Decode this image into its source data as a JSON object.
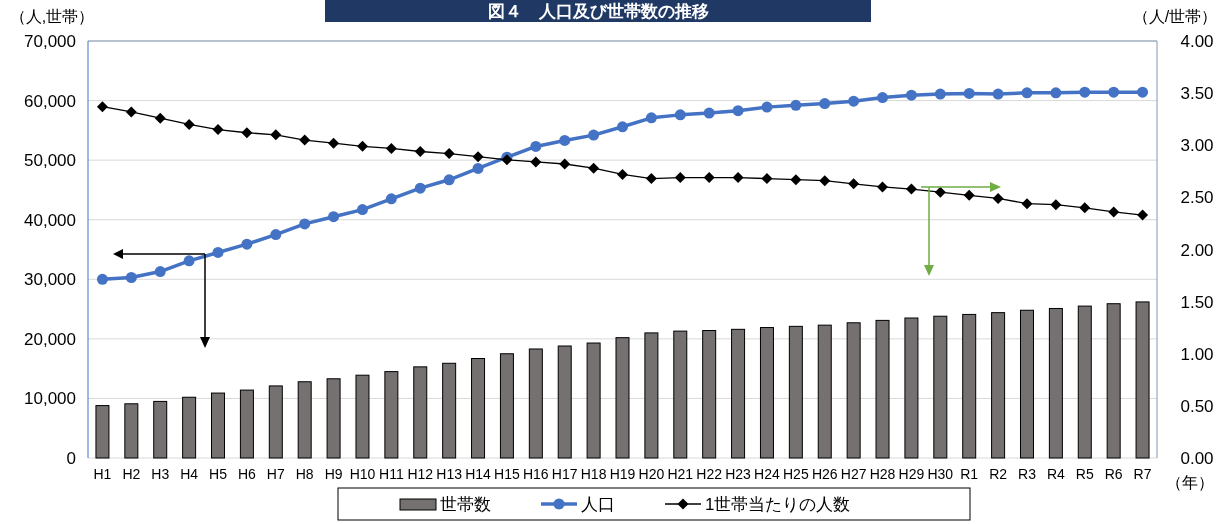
{
  "chart_data": {
    "type": "bar",
    "title": "図４　人口及び世帯数の推移",
    "ylabel": "（人,世帯）",
    "y2label": "（人/世帯）",
    "xlabel": "（年）",
    "categories": [
      "H1",
      "H2",
      "H3",
      "H4",
      "H5",
      "H6",
      "H7",
      "H8",
      "H9",
      "H10",
      "H11",
      "H12",
      "H13",
      "H14",
      "H15",
      "H16",
      "H17",
      "H18",
      "H19",
      "H20",
      "H21",
      "H22",
      "H23",
      "H24",
      "H25",
      "H26",
      "H27",
      "H28",
      "H29",
      "H30",
      "R1",
      "R2",
      "R3",
      "R4",
      "R5",
      "R6",
      "R7"
    ],
    "series": [
      {
        "name": "世帯数",
        "color": "#767171",
        "values": [
          8800,
          9100,
          9500,
          10200,
          10900,
          11400,
          12100,
          12800,
          13300,
          13900,
          14500,
          15300,
          15900,
          16700,
          17500,
          18300,
          18800,
          19300,
          20200,
          21000,
          21300,
          21400,
          21600,
          21900,
          22100,
          22300,
          22700,
          23100,
          23500,
          23800,
          24100,
          24400,
          24800,
          25100,
          25500,
          25900,
          26200
        ]
      },
      {
        "name": "人口",
        "type": "line",
        "color": "#4472c4",
        "marker": "circle",
        "values": [
          30000,
          30300,
          31300,
          33100,
          34500,
          35900,
          37500,
          39300,
          40500,
          41700,
          43500,
          45300,
          46700,
          48600,
          50500,
          52300,
          53300,
          54200,
          55600,
          57100,
          57600,
          57900,
          58300,
          58900,
          59200,
          59500,
          59900,
          60500,
          60900,
          61100,
          61200,
          61100,
          61300,
          61300,
          61400,
          61400,
          61400
        ]
      },
      {
        "name": "1世帯当たりの人数",
        "type": "line",
        "color": "#000000",
        "marker": "diamond",
        "axis": "y2",
        "values": [
          3.37,
          3.32,
          3.26,
          3.2,
          3.15,
          3.12,
          3.1,
          3.05,
          3.02,
          2.99,
          2.97,
          2.94,
          2.92,
          2.89,
          2.86,
          2.84,
          2.82,
          2.78,
          2.72,
          2.68,
          2.69,
          2.69,
          2.69,
          2.68,
          2.67,
          2.66,
          2.63,
          2.6,
          2.58,
          2.55,
          2.52,
          2.49,
          2.44,
          2.43,
          2.4,
          2.36,
          2.33
        ]
      }
    ],
    "ylim": [
      0,
      70000
    ],
    "yticks": [
      {
        "value": 0,
        "label": "0"
      },
      {
        "value": 10000,
        "label": "10,000"
      },
      {
        "value": 20000,
        "label": "20,000"
      },
      {
        "value": 30000,
        "label": "30,000"
      },
      {
        "value": 40000,
        "label": "40,000"
      },
      {
        "value": 50000,
        "label": "50,000"
      },
      {
        "value": 60000,
        "label": "60,000"
      },
      {
        "value": 70000,
        "label": "70,000"
      }
    ],
    "y2lim": [
      0,
      4
    ],
    "y2ticks": [
      {
        "value": 0,
        "label": "0.00"
      },
      {
        "value": 0.5,
        "label": "0.50"
      },
      {
        "value": 1,
        "label": "1.00"
      },
      {
        "value": 1.5,
        "label": "1.50"
      },
      {
        "value": 2,
        "label": "2.00"
      },
      {
        "value": 2.5,
        "label": "2.50"
      },
      {
        "value": 3,
        "label": "3.00"
      },
      {
        "value": 3.5,
        "label": "3.50"
      },
      {
        "value": 4,
        "label": "4.00"
      }
    ],
    "grid": "y",
    "legend": "bottom"
  }
}
